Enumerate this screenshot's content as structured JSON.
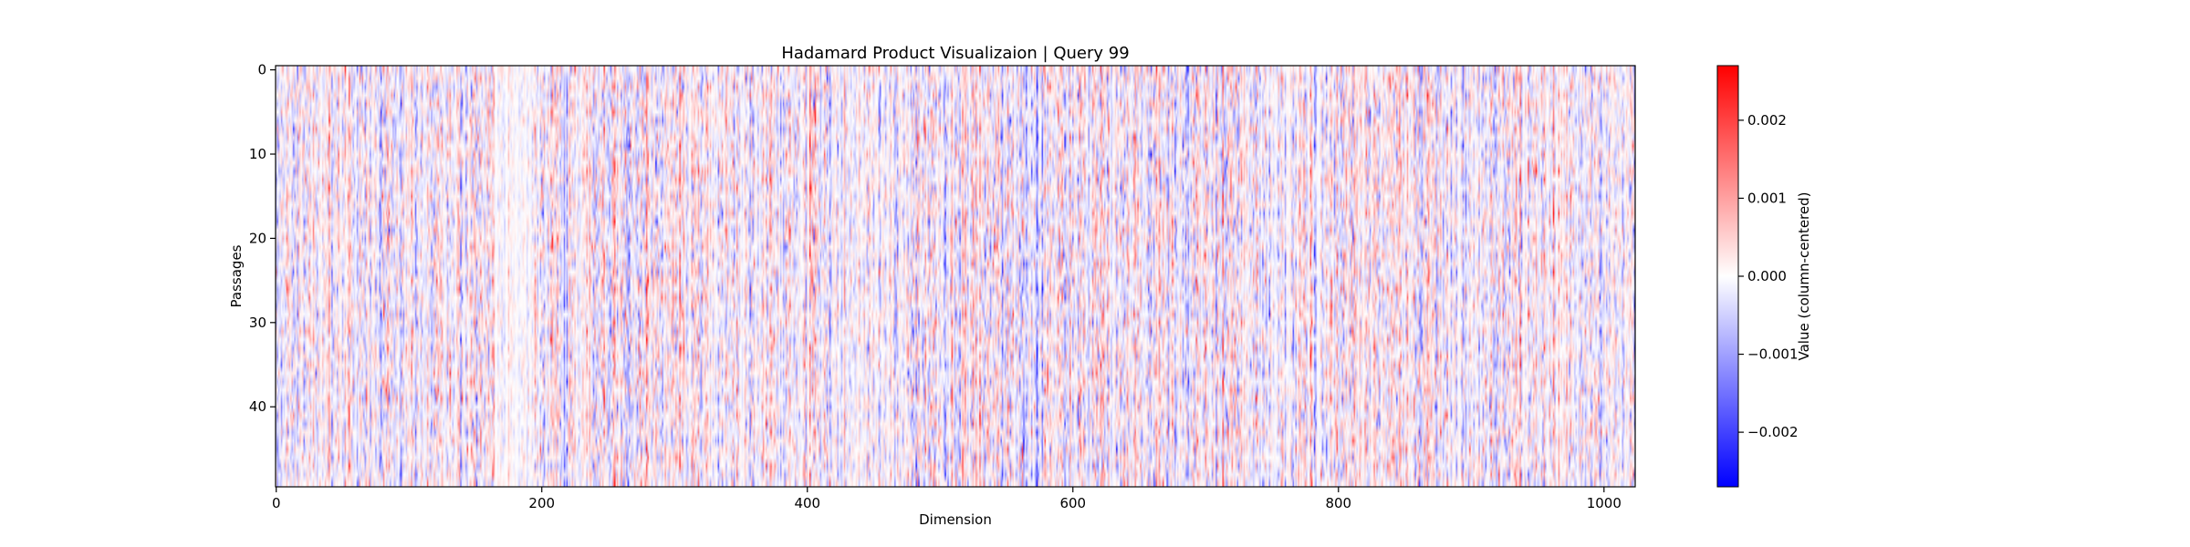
{
  "chart_data": {
    "type": "heatmap",
    "title": "Hadamard Product Visualizaion | Query 99",
    "xlabel": "Dimension",
    "ylabel": "Passages",
    "x_range": [
      0,
      1023
    ],
    "y_range": [
      0,
      49
    ],
    "rows": 50,
    "cols": 1024,
    "x_ticks": [
      0,
      200,
      400,
      600,
      800,
      1000
    ],
    "y_ticks": [
      0,
      10,
      20,
      30,
      40
    ],
    "colormap": "bwr",
    "colormap_colors": [
      "#0000ff",
      "#ffffff",
      "#ff0000"
    ],
    "grid": false,
    "colorbar": {
      "label": "Value (column-centered)",
      "range": [
        -0.0027,
        0.0027
      ],
      "ticks": [
        -0.002,
        -0.001,
        0.0,
        0.001,
        0.002
      ],
      "tick_labels": [
        "−0.002",
        "−0.001",
        "0.000",
        "0.001",
        "0.002"
      ]
    }
  }
}
